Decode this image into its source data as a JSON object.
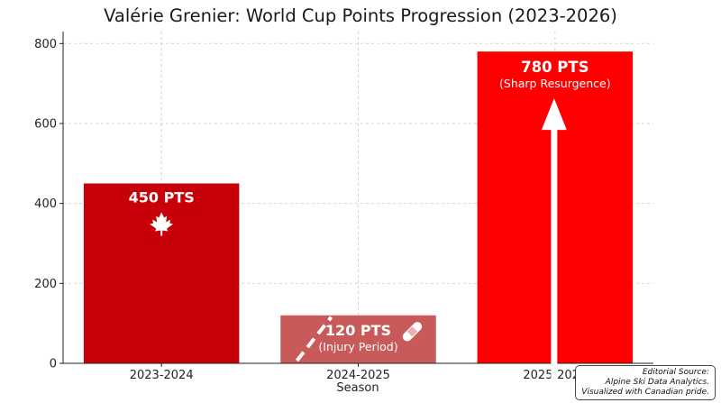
{
  "chart_data": {
    "type": "bar",
    "title": "Valérie Grenier: World Cup Points Progression (2023-2026)",
    "xlabel": "Season",
    "ylabel": "",
    "categories": [
      "2023-2024",
      "2024-2025",
      "2025-2026"
    ],
    "values": [
      450,
      120,
      780
    ],
    "ylim": [
      0,
      830
    ],
    "yticks": [
      0,
      200,
      400,
      600,
      800
    ],
    "grid": true,
    "bar_colors": [
      "#c8000a",
      "#c95a5a",
      "#ff0000"
    ],
    "bar_labels": [
      "450 PTS",
      "120 PTS",
      "780 PTS"
    ],
    "bar_sublabels": [
      "",
      "(Injury Period)",
      "(Sharp Resurgence)"
    ],
    "bar_icons": [
      "maple-leaf-icon",
      "bandage-icon",
      "up-arrow-icon"
    ]
  },
  "source": {
    "line1": "Editorial Source:",
    "line2": "Alpine Ski Data Analytics.",
    "line3": "Visualized with Canadian pride."
  }
}
